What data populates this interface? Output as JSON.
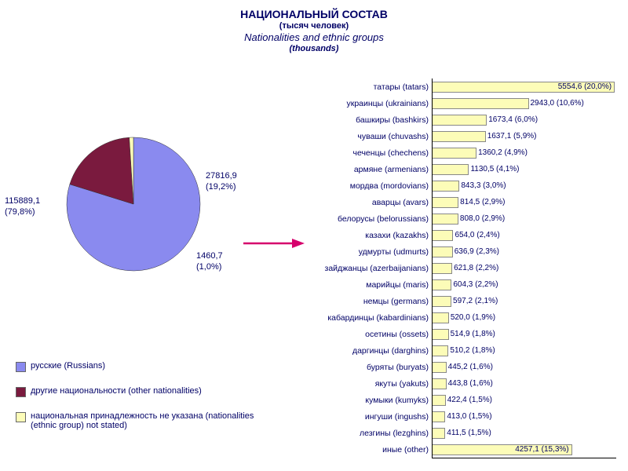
{
  "title": {
    "line1": "НАЦИОНАЛЬНЫЙ СОСТАВ",
    "line2": "(тысяч человек)",
    "line3": "Nationalities and ethnic groups",
    "line4": "(thousands)",
    "fontsize_main": 14,
    "fontsize_small": 11,
    "fontsize_italic": 13,
    "color": "#000066"
  },
  "pie": {
    "type": "pie",
    "slices": [
      {
        "label": "русские (Russians)",
        "value": 115889.1,
        "percent": 79.8,
        "color": "#8a8aef",
        "display": "115889,1\n(79,8%)"
      },
      {
        "label": "другие национальности (other nationalities)",
        "value": 27816.9,
        "percent": 19.2,
        "color": "#7a1a3e",
        "display": "27816,9\n(19,2%)"
      },
      {
        "label": "национальная принадлежность не указана (nationalities (ethnic group) not stated)",
        "value": 1460.7,
        "percent": 1.0,
        "color": "#fcfcb8",
        "display": "1460,7\n(1,0%)"
      }
    ],
    "radius": 85,
    "border_color": "#333333",
    "label_fontsize": 11
  },
  "legend": {
    "items": [
      {
        "swatch": "#8a8aef",
        "text": "русские (Russians)"
      },
      {
        "swatch": "#7a1a3e",
        "text": "другие национальности (other nationalities)"
      },
      {
        "swatch": "#fcfcb8",
        "text": "национальная принадлежность не указана (nationalities (ethnic group) not stated)"
      }
    ],
    "fontsize": 11,
    "text_color": "#000066"
  },
  "arrow": {
    "color": "#d6006c",
    "length": 70,
    "stroke_width": 2.5
  },
  "bars": {
    "type": "bar",
    "bar_color": "#fcfcb8",
    "border_color": "#888888",
    "xlim": [
      0,
      5600
    ],
    "label_fontsize": 10.5,
    "value_fontsize": 10,
    "text_color": "#000066",
    "items": [
      {
        "label": "татары (tatars)",
        "value": 5554.6,
        "display": "5554,6 (20,0%)"
      },
      {
        "label": "украинцы (ukrainians)",
        "value": 2943.0,
        "display": "2943,0 (10,6%)"
      },
      {
        "label": "башкиры (bashkirs)",
        "value": 1673.4,
        "display": "1673,4 (6,0%)"
      },
      {
        "label": "чуваши (chuvashs)",
        "value": 1637.1,
        "display": "1637,1 (5,9%)"
      },
      {
        "label": "чеченцы (chechens)",
        "value": 1360.2,
        "display": "1360,2 (4,9%)"
      },
      {
        "label": "армяне (armenians)",
        "value": 1130.5,
        "display": "1130,5 (4,1%)"
      },
      {
        "label": "мордва (mordovians)",
        "value": 843.3,
        "display": "843,3 (3,0%)"
      },
      {
        "label": "аварцы (avars)",
        "value": 814.5,
        "display": "814,5 (2,9%)"
      },
      {
        "label": "белорусы (belorussians)",
        "value": 808.0,
        "display": "808,0 (2,9%)"
      },
      {
        "label": "казахи (kazakhs)",
        "value": 654.0,
        "display": "654,0 (2,4%)"
      },
      {
        "label": "удмурты (udmurts)",
        "value": 636.9,
        "display": "636,9 (2,3%)"
      },
      {
        "label": "зайджанцы (azerbaijanians)",
        "value": 621.8,
        "display": "621,8 (2,2%)"
      },
      {
        "label": "марийцы (maris)",
        "value": 604.3,
        "display": "604,3 (2,2%)"
      },
      {
        "label": "немцы (germans)",
        "value": 597.2,
        "display": "597,2 (2,1%)"
      },
      {
        "label": "кабардинцы (kabardinians)",
        "value": 520.0,
        "display": "520,0 (1,9%)"
      },
      {
        "label": "осетины (ossets)",
        "value": 514.9,
        "display": "514,9 (1,8%)"
      },
      {
        "label": "даргинцы (darghins)",
        "value": 510.2,
        "display": "510,2 (1,8%)"
      },
      {
        "label": "буряты (buryats)",
        "value": 445.2,
        "display": "445,2 (1,6%)"
      },
      {
        "label": "якуты (yakuts)",
        "value": 443.8,
        "display": "443,8 (1,6%)"
      },
      {
        "label": "кумыки (kumyks)",
        "value": 422.4,
        "display": "422,4 (1,5%)"
      },
      {
        "label": "ингуши (ingushs)",
        "value": 413.0,
        "display": "413,0 (1,5%)"
      },
      {
        "label": "лезгины (lezghins)",
        "value": 411.5,
        "display": "411,5 (1,5%)"
      },
      {
        "label": "иные (other)",
        "value": 4257.1,
        "display": "4257,1 (15,3%)"
      }
    ]
  }
}
